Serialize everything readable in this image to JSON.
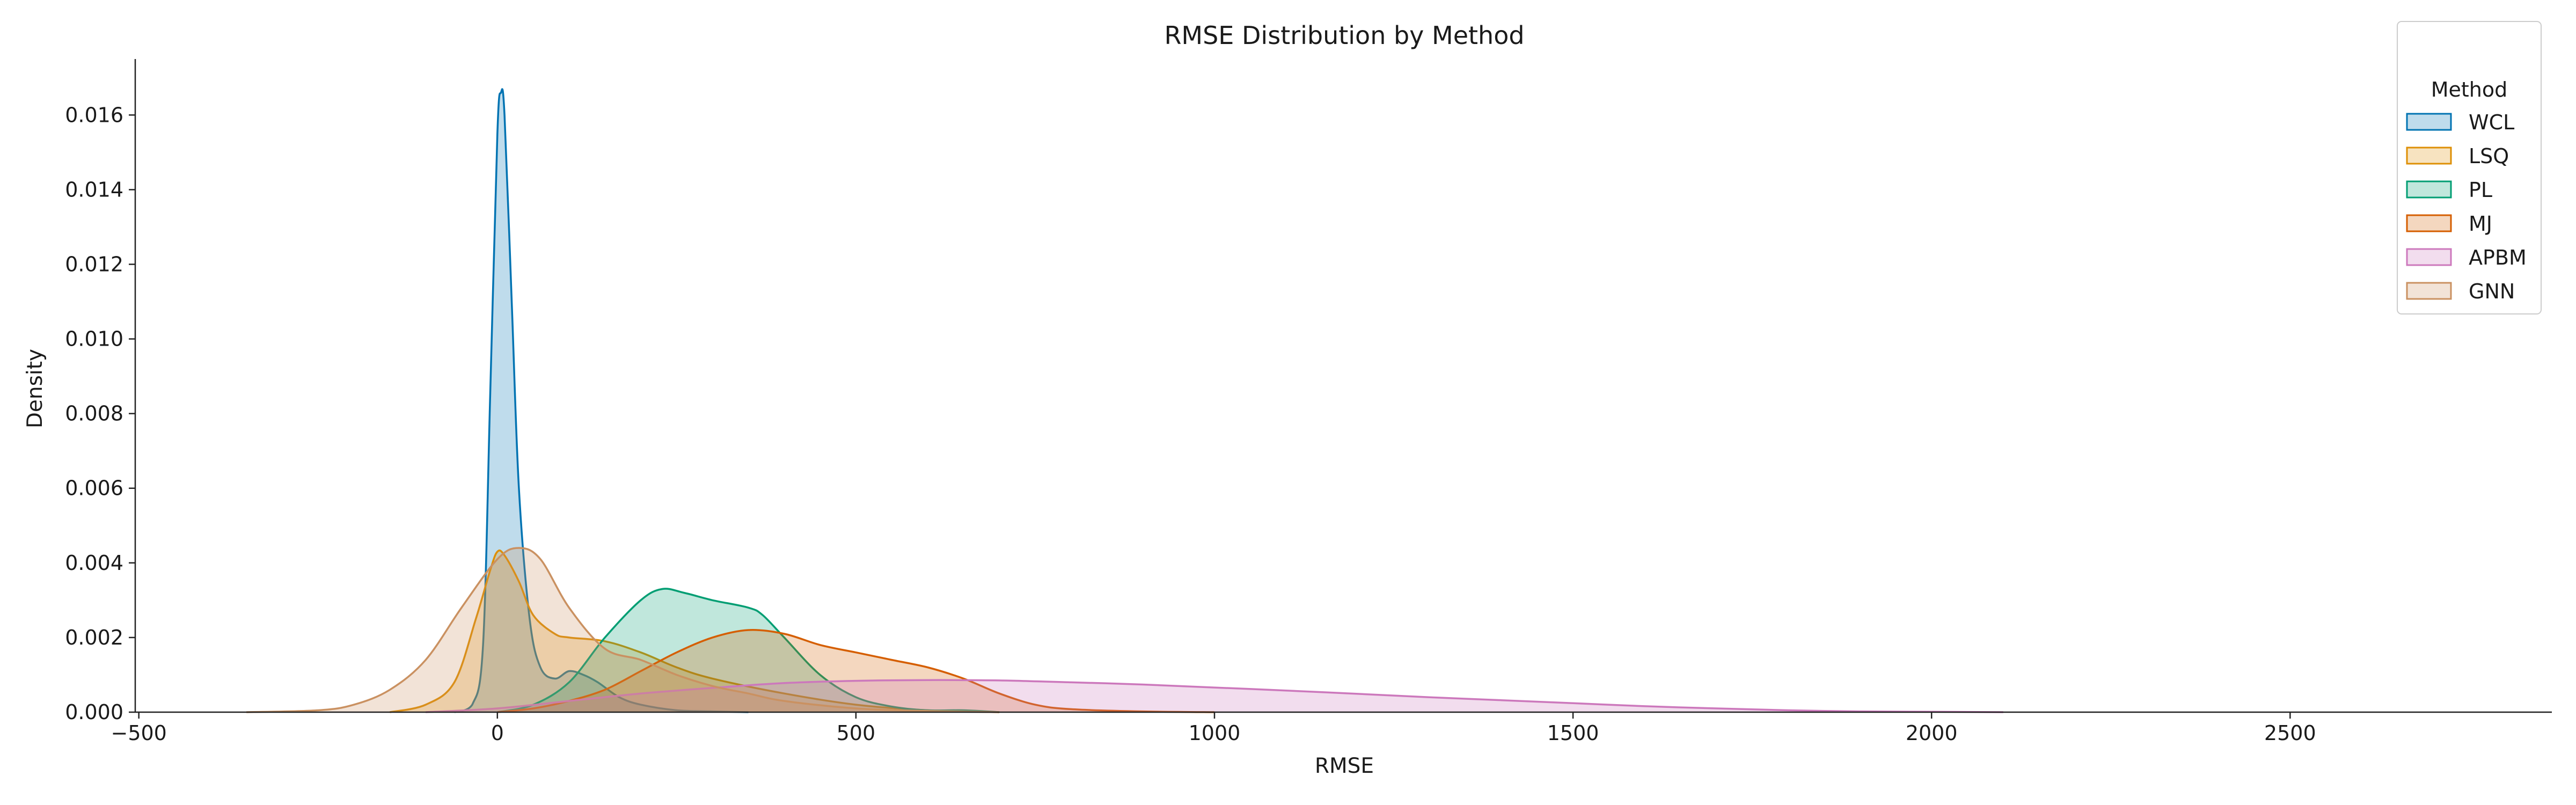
{
  "chart_data": {
    "type": "area",
    "title": "RMSE Distribution by Method",
    "xlabel": "RMSE",
    "ylabel": "Density",
    "xlim": [
      -505,
      2865
    ],
    "ylim": [
      0,
      0.0175
    ],
    "xticks": [
      -500,
      0,
      500,
      1000,
      1500,
      2000,
      2500
    ],
    "xtick_labels": [
      "−500",
      "0",
      "500",
      "1000",
      "1500",
      "2000",
      "2500"
    ],
    "yticks": [
      0,
      0.002,
      0.004,
      0.006,
      0.008,
      0.01,
      0.012,
      0.014,
      0.016
    ],
    "ytick_labels": [
      "0.000",
      "0.002",
      "0.004",
      "0.006",
      "0.008",
      "0.010",
      "0.012",
      "0.014",
      "0.016"
    ],
    "grid": false,
    "legend": {
      "title": "Method",
      "position": "top-right"
    },
    "series": [
      {
        "name": "WCL",
        "color": "#0173b2",
        "x": [
          -60,
          -35,
          -20,
          -10,
          0,
          5,
          10,
          20,
          30,
          45,
          60,
          80,
          100,
          120,
          140,
          170,
          200,
          250,
          300,
          350
        ],
        "y": [
          0,
          0.0002,
          0.0018,
          0.0085,
          0.0155,
          0.0166,
          0.016,
          0.011,
          0.006,
          0.0025,
          0.0012,
          0.0009,
          0.0011,
          0.001,
          0.0008,
          0.0004,
          0.0002,
          5e-05,
          2e-05,
          0
        ]
      },
      {
        "name": "LSQ",
        "color": "#de8f05",
        "x": [
          -150,
          -100,
          -60,
          -30,
          -10,
          0,
          10,
          30,
          50,
          80,
          100,
          150,
          200,
          250,
          300,
          400,
          500,
          600,
          700
        ],
        "y": [
          0,
          0.0002,
          0.0008,
          0.0025,
          0.0038,
          0.0043,
          0.0042,
          0.0035,
          0.0026,
          0.0021,
          0.002,
          0.0019,
          0.0016,
          0.0012,
          0.0009,
          0.0005,
          0.0002,
          5e-05,
          0
        ]
      },
      {
        "name": "PL",
        "color": "#029e73",
        "x": [
          0,
          50,
          100,
          150,
          200,
          230,
          260,
          300,
          350,
          370,
          400,
          450,
          500,
          550,
          600,
          650,
          700
        ],
        "y": [
          0,
          0.0002,
          0.0008,
          0.002,
          0.003,
          0.0033,
          0.0032,
          0.003,
          0.0028,
          0.0026,
          0.002,
          0.001,
          0.0004,
          0.00015,
          5e-05,
          5e-05,
          0
        ]
      },
      {
        "name": "MJ",
        "color": "#d55e00",
        "x": [
          0,
          50,
          100,
          150,
          200,
          250,
          300,
          350,
          400,
          450,
          500,
          550,
          600,
          650,
          700,
          750,
          800,
          900,
          1000
        ],
        "y": [
          0,
          0.0001,
          0.0003,
          0.0006,
          0.0011,
          0.0016,
          0.002,
          0.0022,
          0.0021,
          0.0018,
          0.0016,
          0.0014,
          0.0012,
          0.0009,
          0.0005,
          0.0002,
          8e-05,
          2e-05,
          0
        ]
      },
      {
        "name": "APBM",
        "color": "#cc78bc",
        "x": [
          -100,
          0,
          100,
          200,
          300,
          400,
          500,
          600,
          700,
          800,
          900,
          1000,
          1100,
          1200,
          1300,
          1400,
          1500,
          1600,
          1700,
          1800,
          1900,
          2000,
          2100
        ],
        "y": [
          0,
          0.0001,
          0.0003,
          0.0005,
          0.00065,
          0.00078,
          0.00084,
          0.00086,
          0.00085,
          0.0008,
          0.00074,
          0.00066,
          0.00058,
          0.00049,
          0.0004,
          0.00032,
          0.00024,
          0.00016,
          0.0001,
          5e-05,
          2e-05,
          1e-05,
          0
        ]
      },
      {
        "name": "GNN",
        "color": "#ca9161",
        "x": [
          -350,
          -250,
          -200,
          -150,
          -100,
          -50,
          0,
          30,
          60,
          100,
          150,
          200,
          250,
          300,
          350,
          400,
          500,
          600,
          700
        ],
        "y": [
          0,
          5e-05,
          0.0002,
          0.0006,
          0.0014,
          0.0028,
          0.0041,
          0.0044,
          0.0041,
          0.0028,
          0.0017,
          0.0014,
          0.001,
          0.0007,
          0.0005,
          0.0003,
          0.0001,
          3e-05,
          0
        ]
      }
    ]
  }
}
